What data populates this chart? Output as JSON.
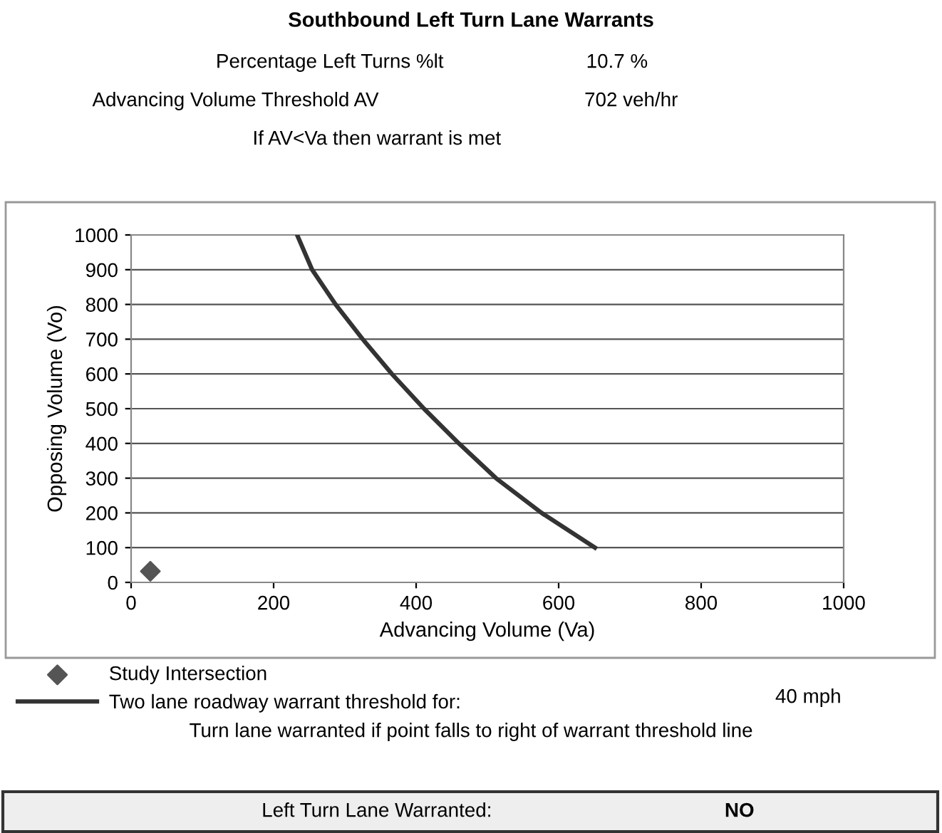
{
  "chart_data": {
    "type": "line",
    "title": "Southbound Left Turn Lane Warrants",
    "xlabel": "Advancing Volume (Va)",
    "ylabel": "Opposing Volume (Vo)",
    "xlim": [
      0,
      1000
    ],
    "xticks": [
      0,
      200,
      400,
      600,
      800,
      1000
    ],
    "ylim": [
      0,
      1000
    ],
    "yticks": [
      0,
      100,
      200,
      300,
      400,
      500,
      600,
      700,
      800,
      900,
      1000
    ],
    "grid": "y",
    "legend": "bottom",
    "series": [
      {
        "name": "Study Intersection",
        "type": "scatter",
        "marker": "diamond",
        "color": "#555555",
        "x": [
          27
        ],
        "values": [
          32
        ]
      },
      {
        "name": "Two lane roadway warrant threshold for:",
        "type": "line",
        "marker": "none",
        "line_style": "solid",
        "color": "#333333",
        "x": [
          233,
          254,
          287,
          325,
          366,
          411,
          460,
          512,
          576,
          651
        ],
        "values": [
          1000,
          900,
          800,
          700,
          600,
          500,
          400,
          300,
          200,
          100
        ]
      }
    ],
    "annotations": [
      "Percentage Left Turns %lt",
      "10.7 %",
      "Advancing Volume Threshold AV",
      "702 veh/hr",
      "If AV<Va then warrant is met",
      "40 mph",
      "Turn lane warranted if point falls to right of warrant threshold line",
      "Left Turn Lane Warranted:",
      "NO"
    ]
  }
}
